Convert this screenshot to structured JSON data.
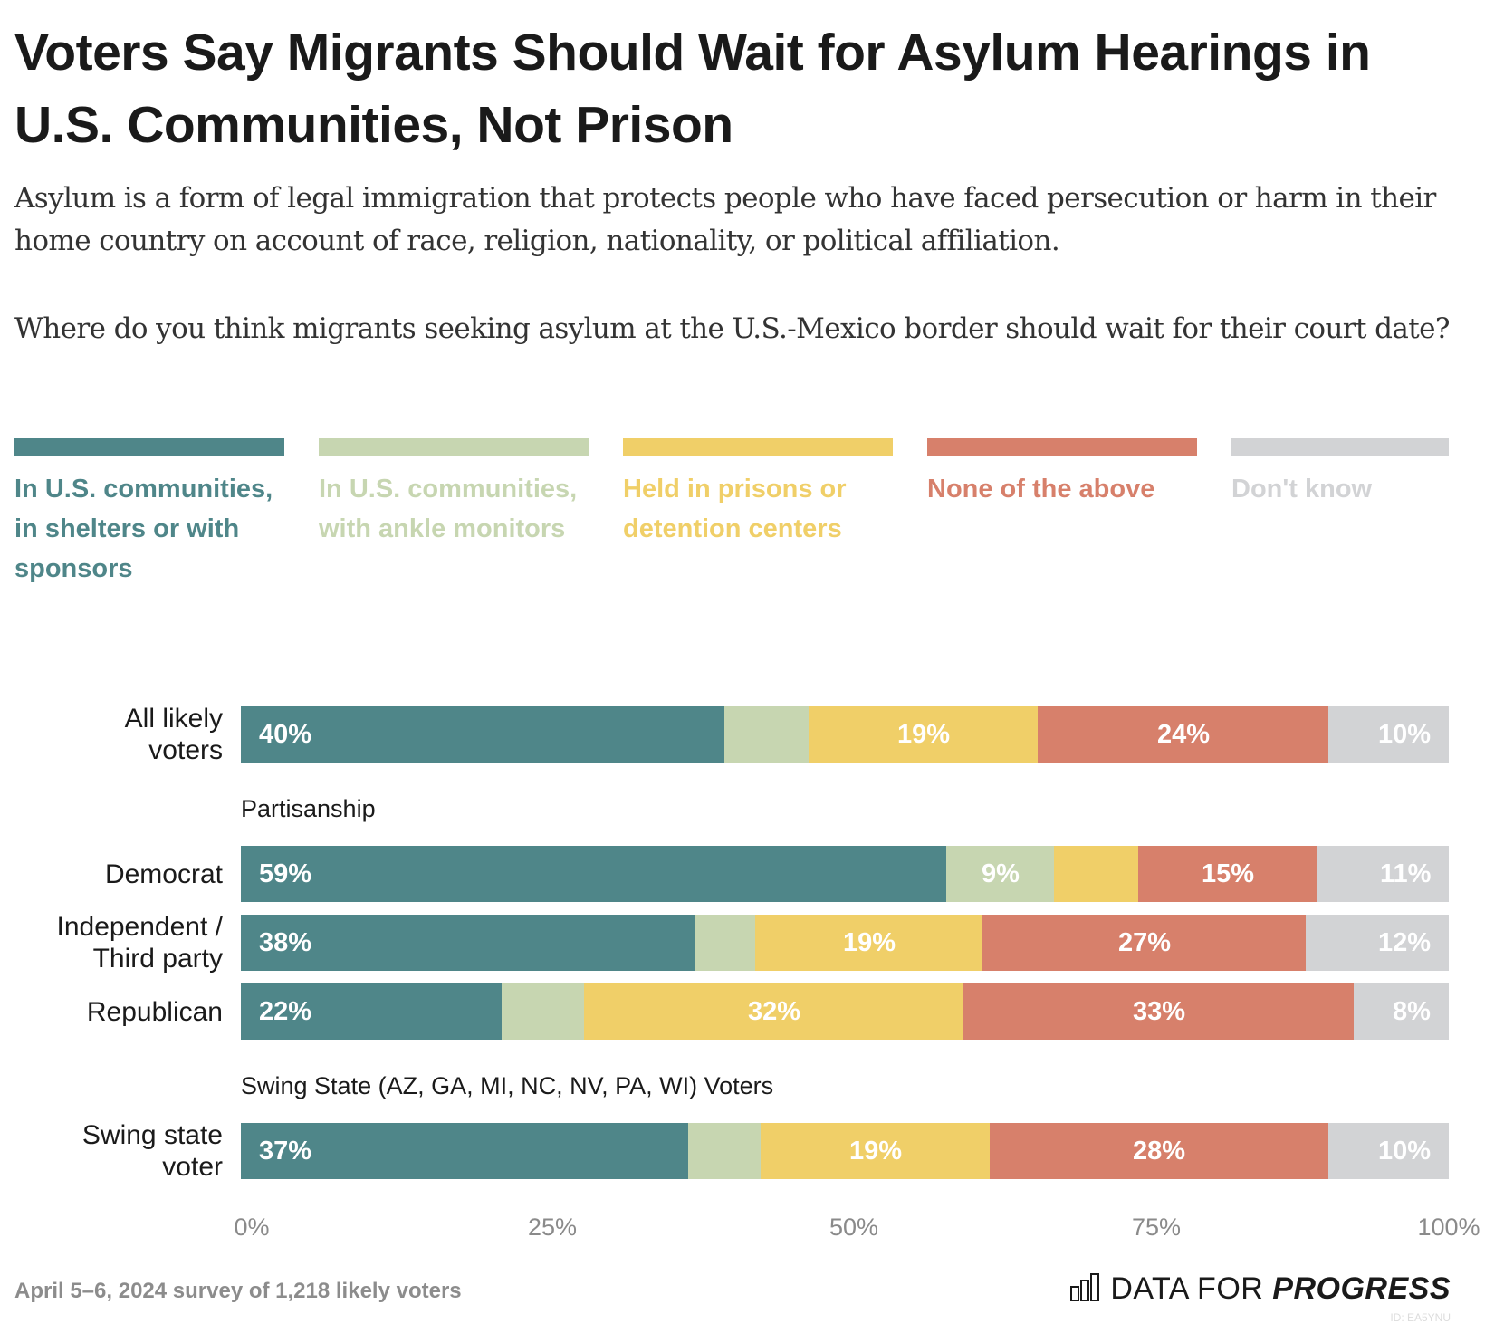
{
  "header": {
    "title": "Voters Say Migrants Should Wait for Asylum Hearings in U.S. Communities, Not Prison",
    "description": "Asylum is a form of legal immigration that protects people who have faced persecution or harm in their home country on account of race, religion, nationality, or political affiliation.",
    "question": "Where do you think migrants seeking asylum at the U.S.-Mexico border should wait for their court date?"
  },
  "colors": {
    "communities_shelters": "#4f8689",
    "communities_monitors": "#c7d6b1",
    "prisons": "#f0cf68",
    "none": "#d7806b",
    "dont_know": "#d2d3d5"
  },
  "chart_data": {
    "type": "bar",
    "orientation": "horizontal",
    "stacked": true,
    "title": "Voters Say Migrants Should Wait for Asylum Hearings in U.S. Communities, Not Prison",
    "xlabel": "",
    "ylabel": "",
    "xlim": [
      0,
      100
    ],
    "xticks": [
      "0%",
      "25%",
      "50%",
      "75%",
      "100%"
    ],
    "legend_position": "top",
    "series": [
      {
        "key": "communities_shelters",
        "name": "In U.S. communities, in shelters or with sponsors",
        "color": "#4f8689"
      },
      {
        "key": "communities_monitors",
        "name": "In U.S. communities, with ankle monitors",
        "color": "#c7d6b1"
      },
      {
        "key": "prisons",
        "name": "Held in prisons or detention centers",
        "color": "#f0cf68"
      },
      {
        "key": "none",
        "name": "None of the above",
        "color": "#d7806b"
      },
      {
        "key": "dont_know",
        "name": "Don't know",
        "color": "#d2d3d5"
      }
    ],
    "groups": [
      {
        "section": "",
        "rows": [
          {
            "category": "All likely voters",
            "values": [
              40,
              7,
              19,
              24,
              10
            ],
            "labels": [
              "40%",
              "",
              "19%",
              "24%",
              "10%"
            ]
          }
        ]
      },
      {
        "section": "Partisanship",
        "rows": [
          {
            "category": "Democrat",
            "values": [
              59,
              9,
              7,
              15,
              11
            ],
            "labels": [
              "59%",
              "9%",
              "",
              "15%",
              "11%"
            ]
          },
          {
            "category": "Independent / Third party",
            "values": [
              38,
              5,
              19,
              27,
              12
            ],
            "labels": [
              "38%",
              "",
              "19%",
              "27%",
              "12%"
            ]
          },
          {
            "category": "Republican",
            "values": [
              22,
              7,
              32,
              33,
              8
            ],
            "labels": [
              "22%",
              "",
              "32%",
              "33%",
              "8%"
            ]
          }
        ]
      },
      {
        "section": "Swing State (AZ, GA, MI, NC, NV, PA, WI) Voters",
        "rows": [
          {
            "category": "Swing state voter",
            "values": [
              37,
              6,
              19,
              28,
              10
            ],
            "labels": [
              "37%",
              "",
              "19%",
              "28%",
              "10%"
            ]
          }
        ]
      }
    ]
  },
  "legend": [
    {
      "label": "In U.S. communities, in shelters or with sponsors"
    },
    {
      "label": "In U.S. communities, with ankle monitors"
    },
    {
      "label": "Held in prisons or detention centers"
    },
    {
      "label": "None of the above"
    },
    {
      "label": "Don't know"
    }
  ],
  "rows_display": [
    {
      "label_line1": "All likely",
      "label_line2": "voters"
    },
    {
      "label_line1": "Democrat",
      "label_line2": ""
    },
    {
      "label_line1": "Independent /",
      "label_line2": "Third party"
    },
    {
      "label_line1": "Republican",
      "label_line2": ""
    },
    {
      "label_line1": "Swing state",
      "label_line2": "voter"
    }
  ],
  "sections": {
    "partisanship": "Partisanship",
    "swing": "Swing State (AZ, GA, MI, NC, NV, PA, WI) Voters"
  },
  "axis": {
    "ticks": [
      "0%",
      "25%",
      "50%",
      "75%",
      "100%"
    ]
  },
  "footer": {
    "source": "April 5–6, 2024 survey of 1,218 likely voters",
    "logo_light": "DATA FOR",
    "logo_bold": "PROGRESS",
    "chart_id": "ID: EA5YNU"
  }
}
